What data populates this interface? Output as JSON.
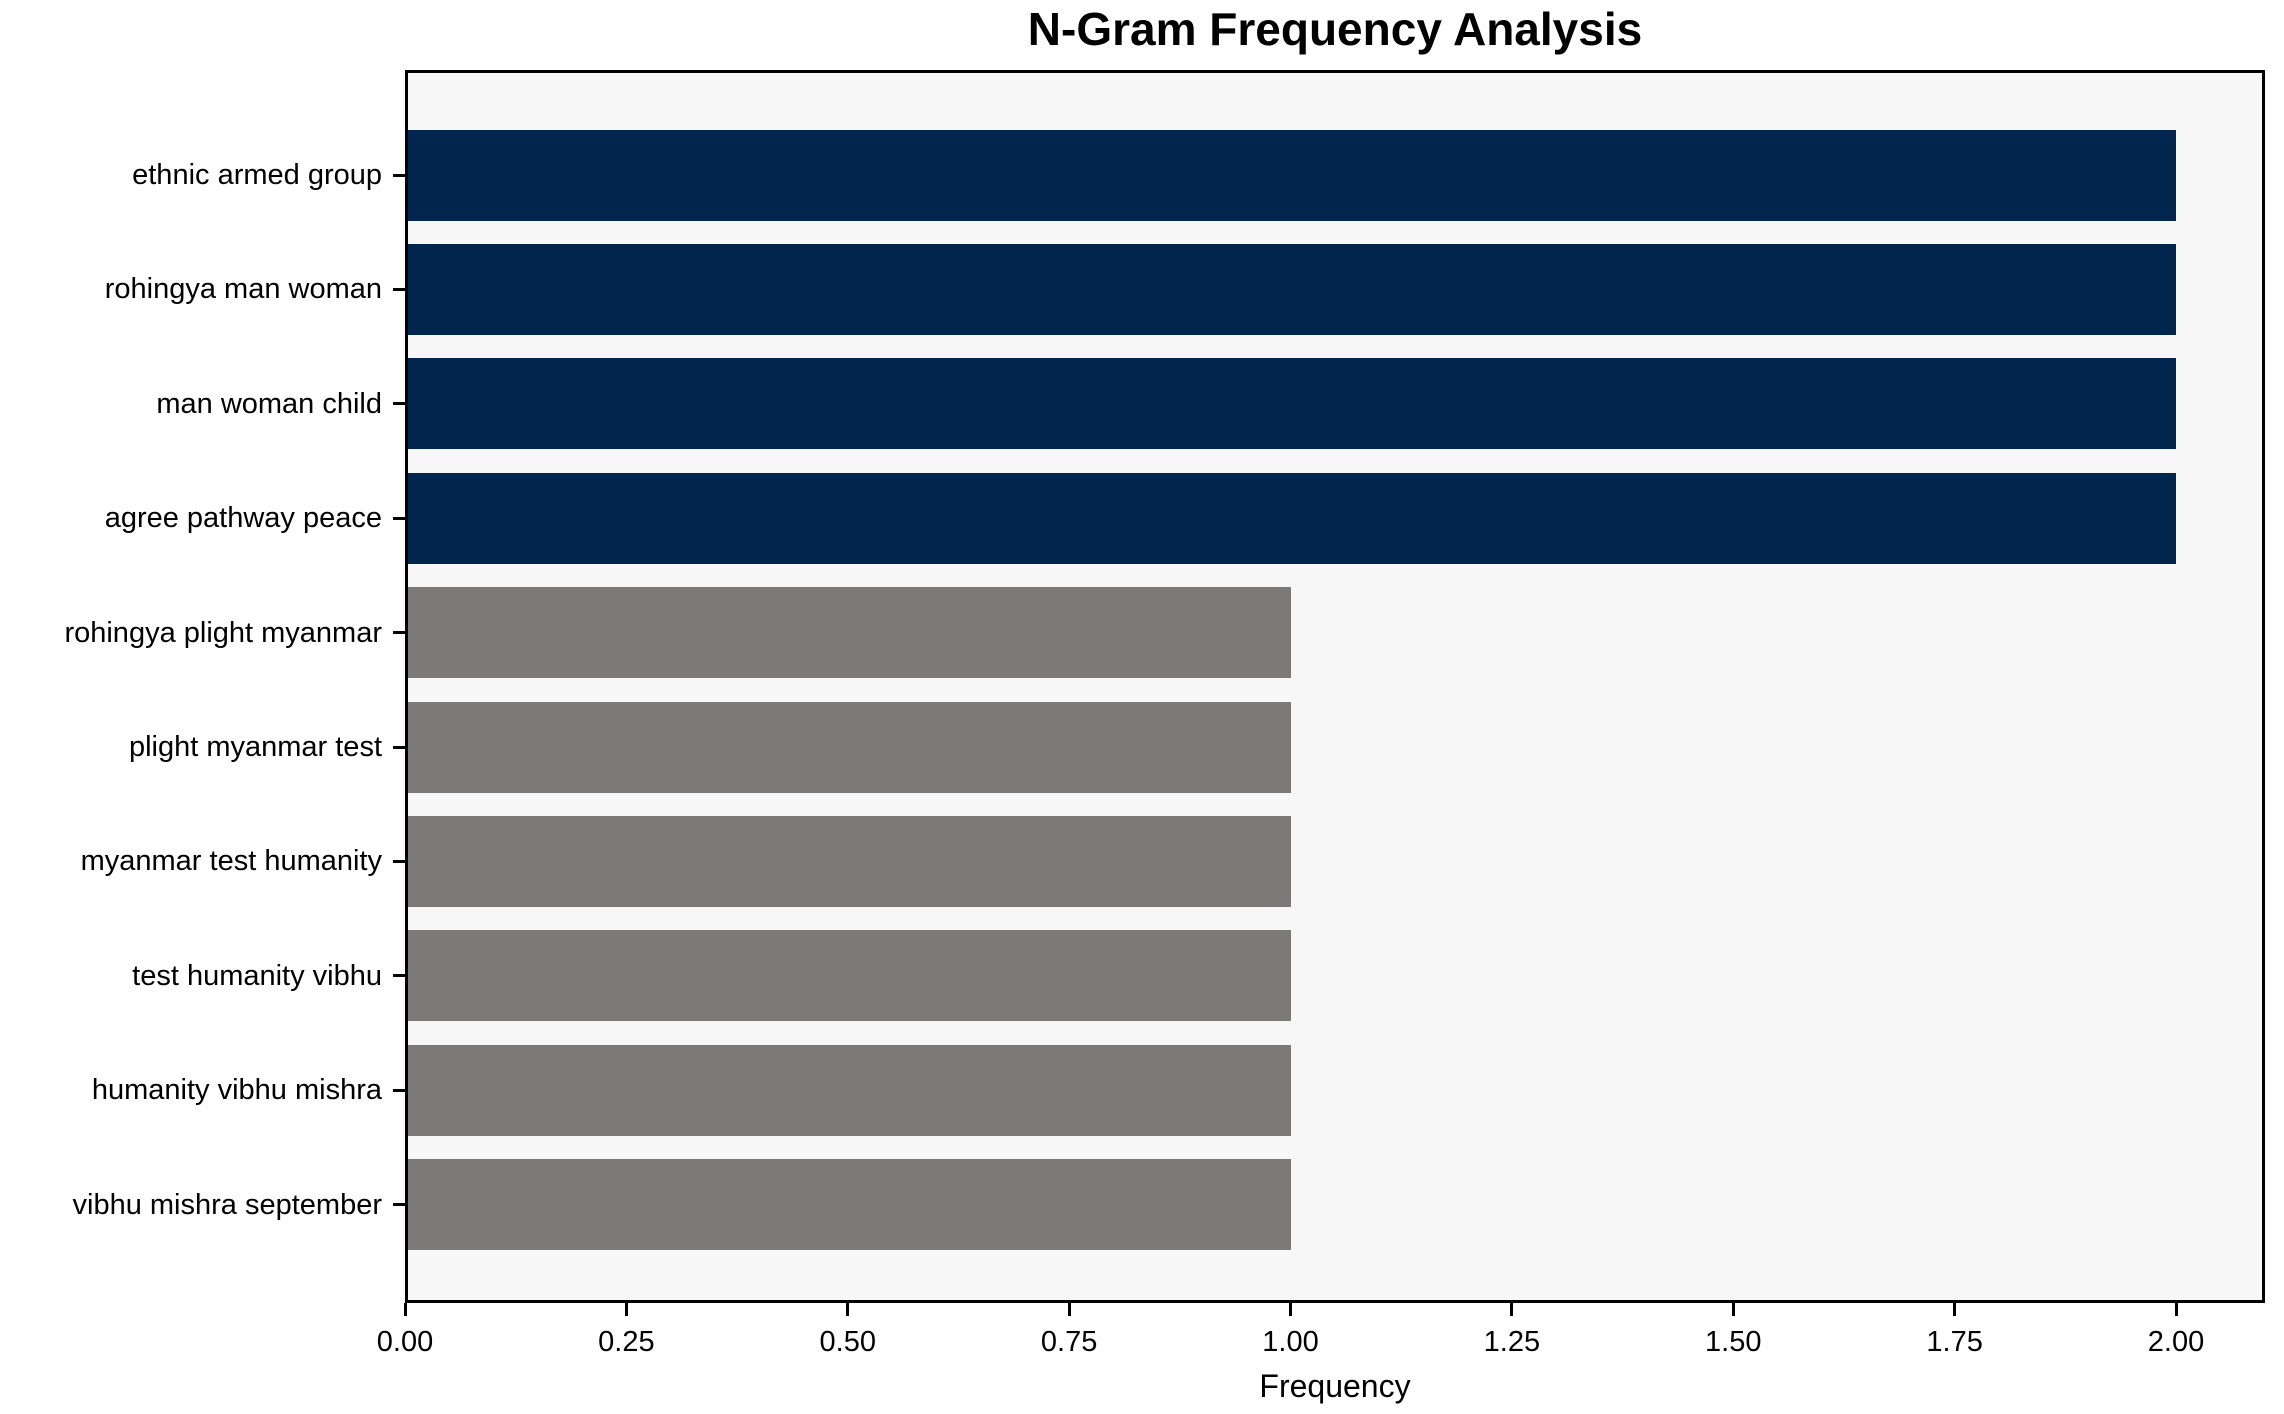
{
  "chart_data": {
    "type": "bar",
    "orientation": "horizontal",
    "title": "N-Gram Frequency Analysis",
    "xlabel": "Frequency",
    "ylabel": "",
    "categories": [
      "ethnic armed group",
      "rohingya man woman",
      "man woman child",
      "agree pathway peace",
      "rohingya plight myanmar",
      "plight myanmar test",
      "myanmar test humanity",
      "test humanity vibhu",
      "humanity vibhu mishra",
      "vibhu mishra september"
    ],
    "values": [
      2,
      2,
      2,
      2,
      1,
      1,
      1,
      1,
      1,
      1
    ],
    "bar_colors": [
      "#02254d",
      "#02254d",
      "#02254d",
      "#02254d",
      "#7b7a78",
      "#7b7a78",
      "#7b7a78",
      "#7b7a78",
      "#7b7a78",
      "#7b7a78"
    ],
    "xlim": [
      0,
      2.1
    ],
    "xticks": [
      "0.00",
      "0.25",
      "0.50",
      "0.75",
      "1.00",
      "1.25",
      "1.50",
      "1.75",
      "2.00"
    ],
    "xtick_values": [
      0,
      0.25,
      0.5,
      0.75,
      1.0,
      1.25,
      1.5,
      1.75,
      2.0
    ],
    "grid": false,
    "legend_position": "none",
    "colors": {
      "highlight_bar": "#02254d",
      "normal_bar": "#7b7a78",
      "plot_background": "#f7f7f7",
      "figure_background": "#ffffff",
      "spine": "#000000",
      "text": "#000000"
    }
  }
}
